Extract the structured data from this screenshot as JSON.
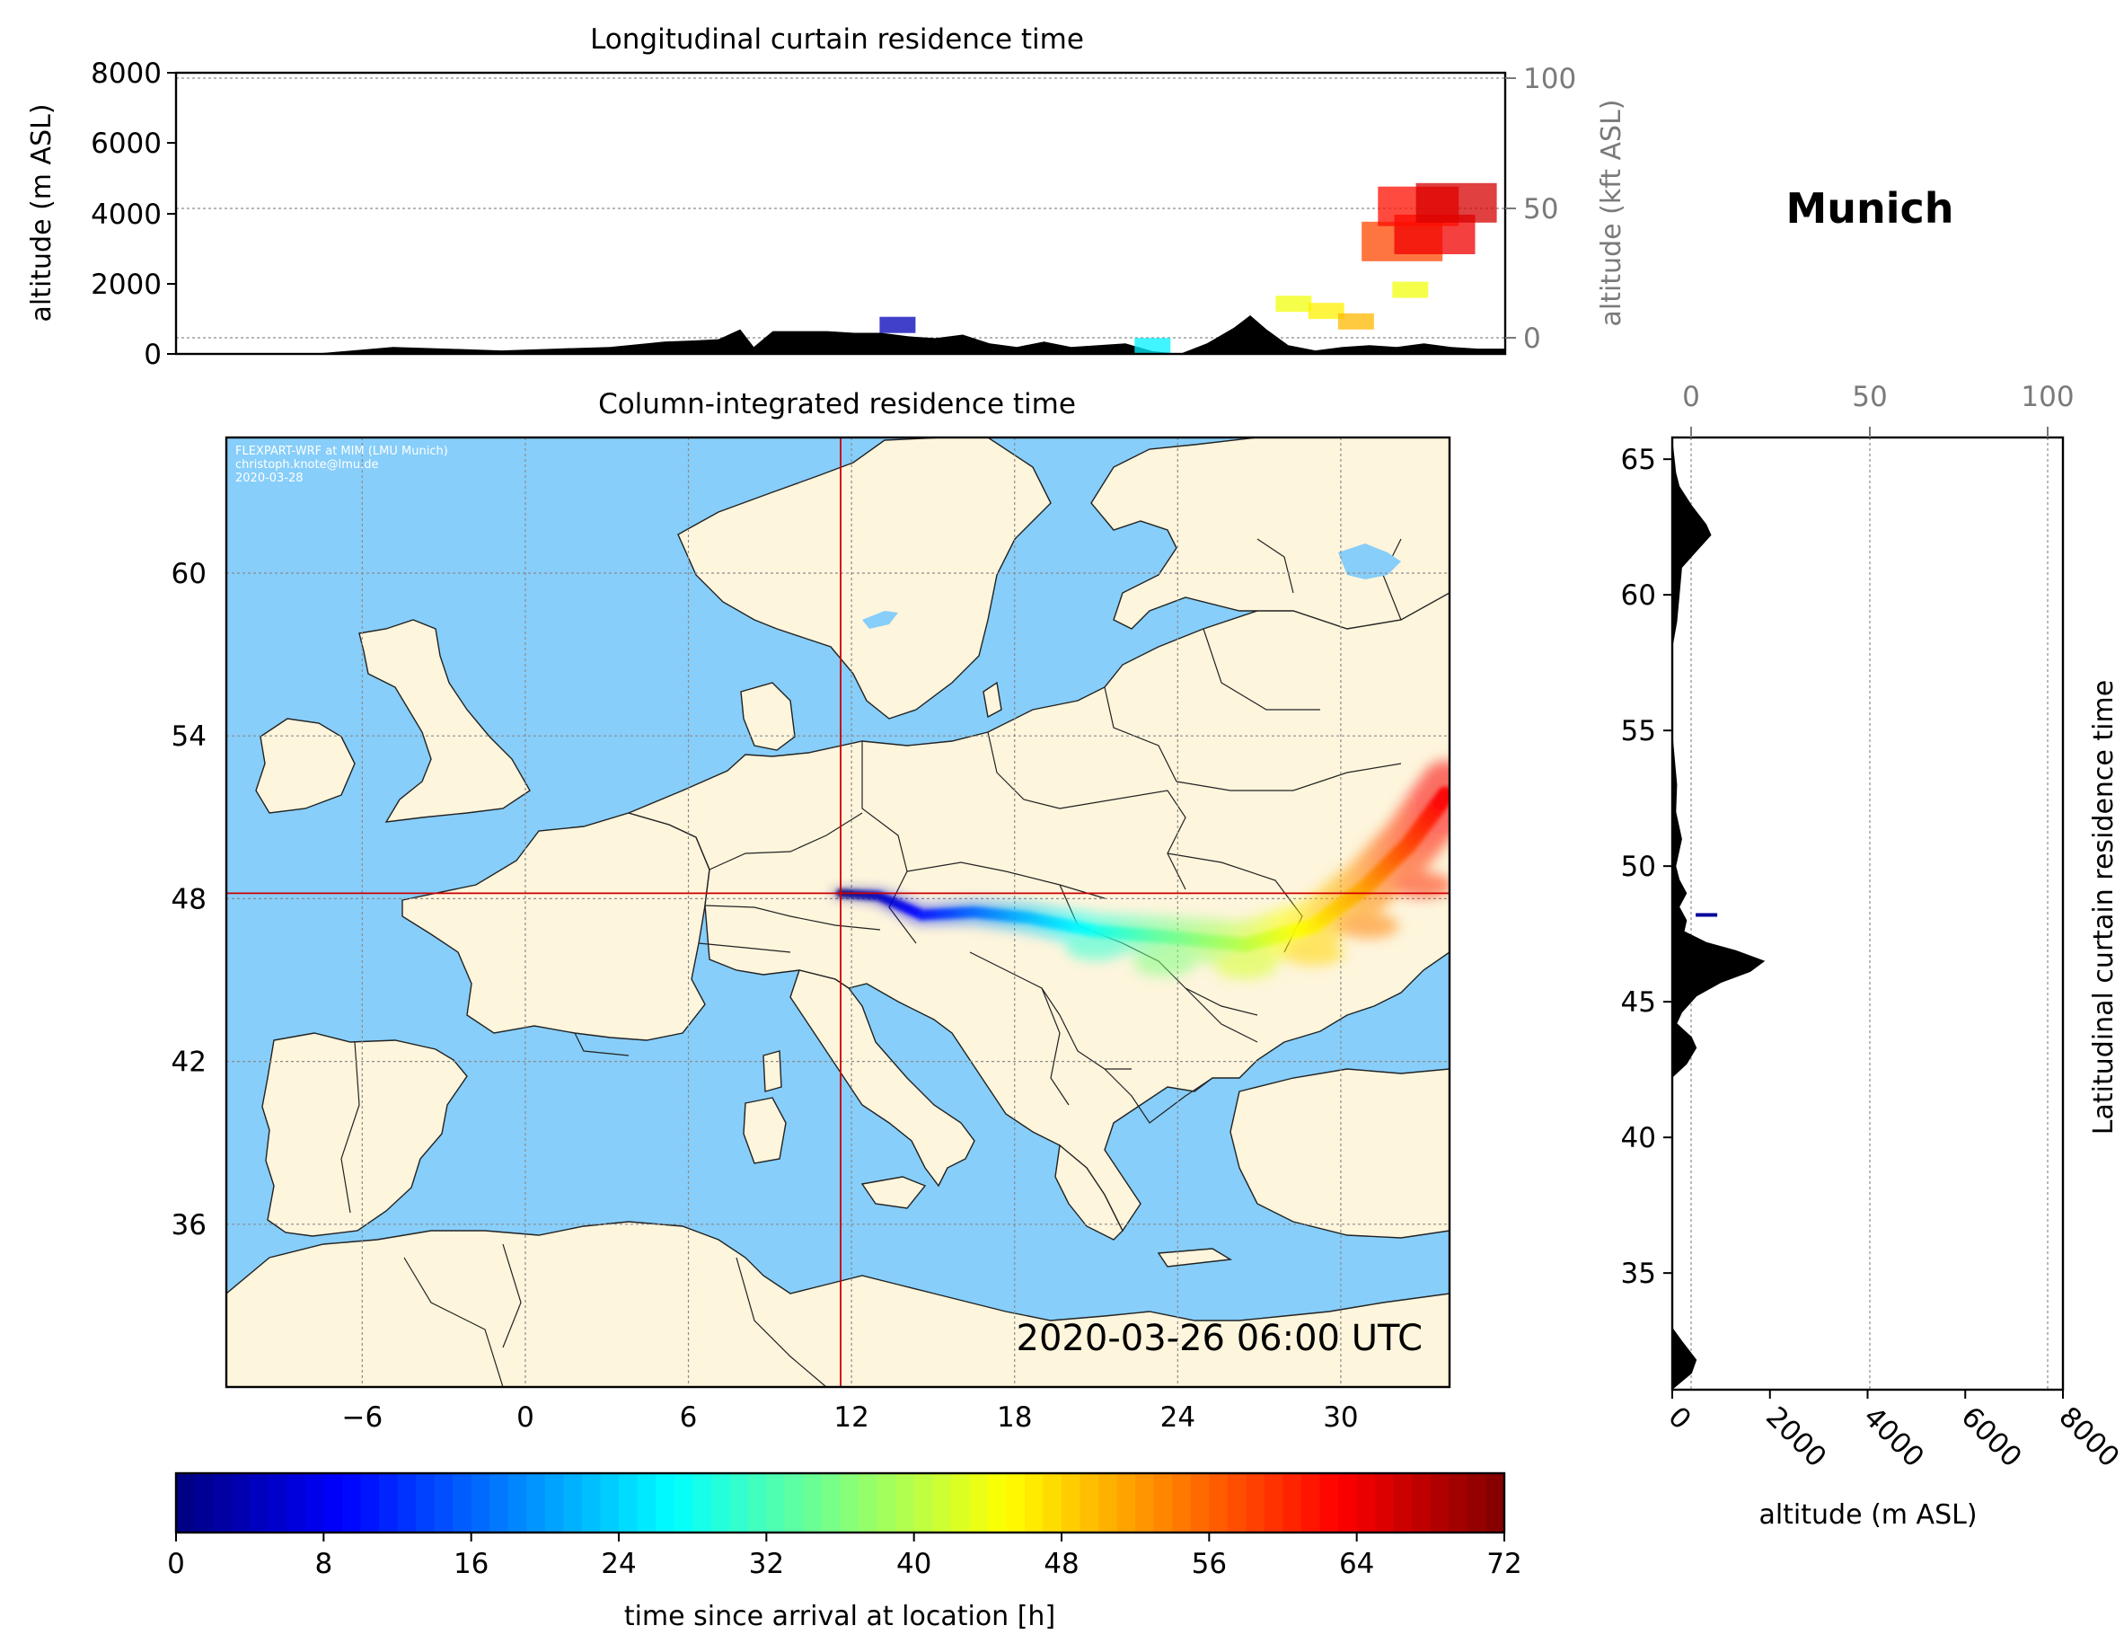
{
  "location_title": "Munich",
  "timestamp": "2020-03-26 06:00 UTC",
  "credits": [
    "FLEXPART-WRF at MIM (LMU Munich)",
    "christoph.knote@lmu.de",
    "2020-03-28"
  ],
  "colors": {
    "ocean": "#87cefa",
    "land": "#fdf5dc",
    "terrain": "#000000",
    "crosshair": "#cc0000",
    "colormap": "jet"
  },
  "chart_data": [
    {
      "type": "area",
      "title": "Longitudinal curtain residence time",
      "xlabel": "",
      "ylabel": "altitude (m ASL)",
      "ylabel_right": "altitude (kft ASL)",
      "ylim": [
        0,
        8000
      ],
      "yticks": [
        "0",
        "2000",
        "4000",
        "6000",
        "8000"
      ],
      "y2ticks": [
        "0",
        "50",
        "100"
      ],
      "xlim": [
        -14,
        35
      ],
      "terrain": {
        "x": [
          -14,
          -9,
          -6,
          -4,
          -2,
          0,
          2,
          4,
          5,
          6,
          6.8,
          7.3,
          8,
          9,
          10,
          11,
          12,
          13,
          14,
          15,
          16,
          17,
          18,
          19,
          20,
          21,
          22,
          23,
          24,
          25,
          25.6,
          26.2,
          27,
          28,
          29,
          30,
          31,
          32,
          33,
          34,
          35
        ],
        "y": [
          0,
          0,
          200,
          150,
          100,
          150,
          200,
          350,
          380,
          420,
          700,
          200,
          650,
          650,
          650,
          600,
          600,
          500,
          450,
          550,
          300,
          200,
          350,
          200,
          250,
          300,
          80,
          0,
          300,
          750,
          1100,
          700,
          250,
          100,
          200,
          250,
          200,
          300,
          200,
          150,
          150
        ]
      },
      "residence": [
        {
          "lon": 12.6,
          "alt": 800,
          "hours": 4
        },
        {
          "lon": 22,
          "alt": 200,
          "hours": 26
        },
        {
          "lon": 27.2,
          "alt": 1400,
          "hours": 44
        },
        {
          "lon": 28.4,
          "alt": 1200,
          "hours": 46
        },
        {
          "lon": 29.5,
          "alt": 900,
          "hours": 50
        },
        {
          "lon": 31.5,
          "alt": 1800,
          "hours": 44
        },
        {
          "lon": 31.2,
          "alt": 3200,
          "hours": 58
        },
        {
          "lon": 32.4,
          "alt": 3400,
          "hours": 64
        },
        {
          "lon": 31.8,
          "alt": 4200,
          "hours": 62
        },
        {
          "lon": 33.2,
          "alt": 4300,
          "hours": 66
        }
      ]
    },
    {
      "type": "heatmap",
      "title": "Column-integrated residence time",
      "xlabel": "",
      "ylabel": "",
      "xlim": [
        -11,
        34
      ],
      "ylim": [
        30,
        65
      ],
      "xticks": [
        -6,
        0,
        6,
        12,
        18,
        24,
        30
      ],
      "yticks": [
        36,
        42,
        48,
        54,
        60
      ],
      "release_point": {
        "lon": 11.6,
        "lat": 48.2
      },
      "trajectory": [
        {
          "lon": 11.6,
          "lat": 48.2,
          "hours": 0
        },
        {
          "lon": 13.0,
          "lat": 48.1,
          "hours": 4
        },
        {
          "lon": 14.6,
          "lat": 47.4,
          "hours": 10
        },
        {
          "lon": 16.5,
          "lat": 47.5,
          "hours": 16
        },
        {
          "lon": 18.5,
          "lat": 47.3,
          "hours": 22
        },
        {
          "lon": 21.0,
          "lat": 46.8,
          "hours": 28
        },
        {
          "lon": 23.5,
          "lat": 46.6,
          "hours": 34
        },
        {
          "lon": 26.5,
          "lat": 46.3,
          "hours": 40
        },
        {
          "lon": 29.0,
          "lat": 47.0,
          "hours": 46
        },
        {
          "lon": 31.0,
          "lat": 48.5,
          "hours": 52
        },
        {
          "lon": 32.5,
          "lat": 50.0,
          "hours": 58
        },
        {
          "lon": 34.0,
          "lat": 52.0,
          "hours": 64
        }
      ]
    },
    {
      "type": "area",
      "title": "",
      "ylabel_right": "Latitudinal curtain residence time",
      "xlabel": "altitude (m ASL)",
      "xlim": [
        0,
        8000
      ],
      "xticks": [
        "0",
        "2000",
        "4000",
        "6000",
        "8000"
      ],
      "x2ticks": [
        "0",
        "50",
        "100"
      ],
      "ylim": [
        30.7,
        65.8
      ],
      "yticks": [
        "35",
        "40",
        "45",
        "50",
        "55",
        "60",
        "65"
      ],
      "terrain": {
        "lat": [
          30.7,
          31.3,
          31.8,
          32.5,
          33,
          35,
          40,
          42.2,
          42.7,
          43.3,
          43.7,
          44.2,
          44.6,
          45.2,
          45.7,
          46.1,
          46.5,
          46.9,
          47.2,
          47.6,
          48.0,
          48.5,
          49.0,
          49.5,
          50.0,
          51.0,
          52.0,
          53.0,
          55,
          58,
          59,
          60,
          61.0,
          61.6,
          62.2,
          62.6,
          63.3,
          64.0,
          64.5,
          65.8
        ],
        "alt": [
          0,
          400,
          500,
          200,
          0,
          0,
          0,
          0,
          300,
          500,
          400,
          100,
          200,
          500,
          1000,
          1600,
          1900,
          1300,
          700,
          250,
          300,
          150,
          300,
          150,
          80,
          200,
          80,
          100,
          0,
          0,
          100,
          150,
          200,
          500,
          800,
          700,
          400,
          150,
          80,
          0
        ]
      },
      "residence": [
        {
          "lat": 48.2,
          "alt": 700,
          "hours": 2
        }
      ]
    },
    {
      "type": "heatmap",
      "title": "",
      "xlabel": "time since arrival at location [h]",
      "xlim": [
        0,
        72
      ],
      "xticks": [
        "0",
        "8",
        "16",
        "24",
        "32",
        "40",
        "48",
        "56",
        "64",
        "72"
      ],
      "colormap": "jet",
      "levels": 72
    }
  ]
}
